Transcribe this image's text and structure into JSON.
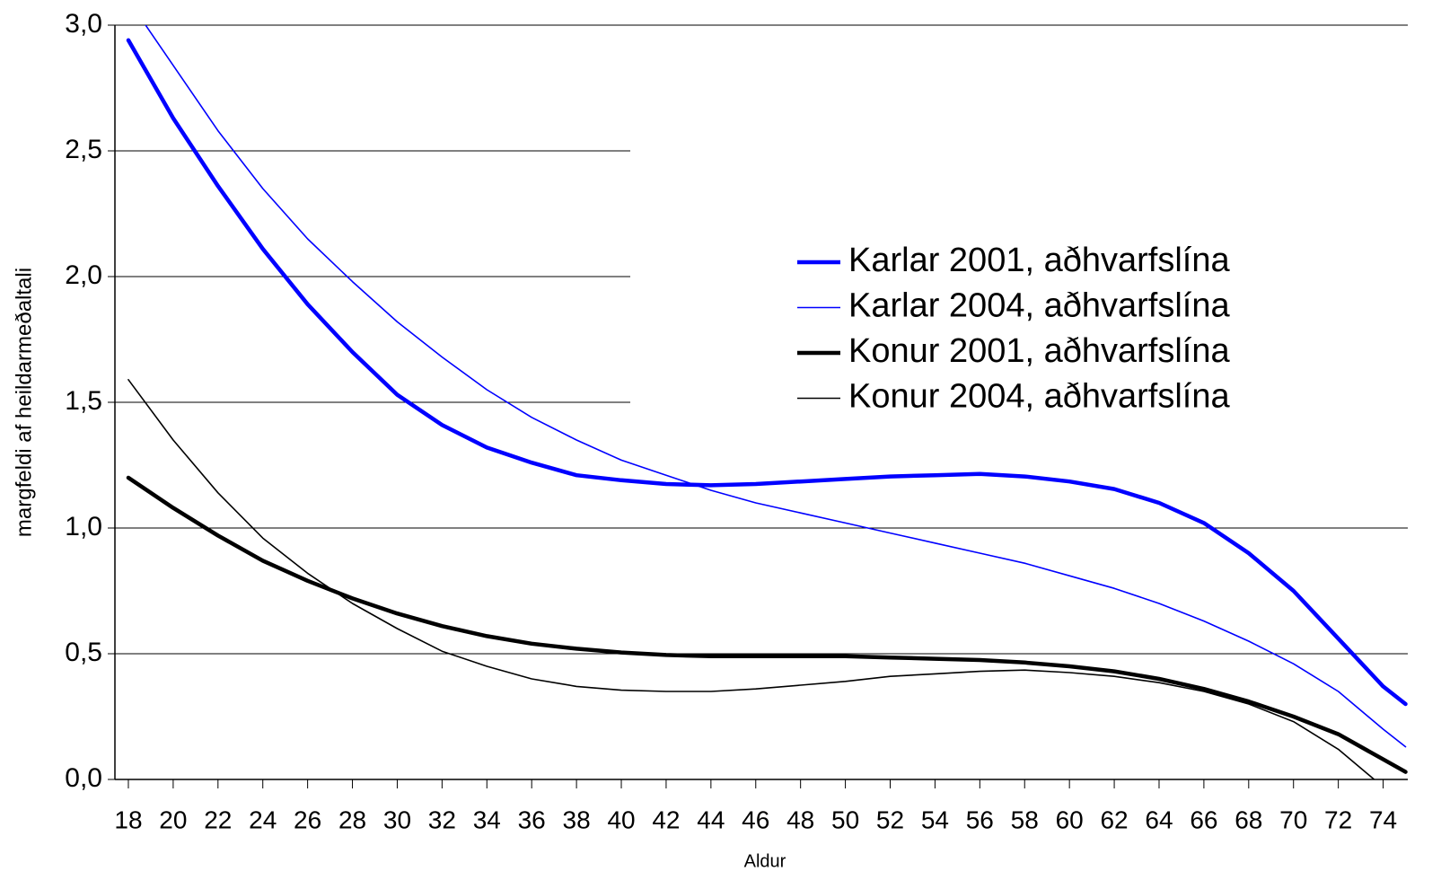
{
  "chart_data": {
    "type": "line",
    "x_label": "Aldur",
    "y_label": "margfeldi af heildarmeðaltali",
    "x": [
      18,
      20,
      22,
      24,
      26,
      28,
      30,
      32,
      34,
      36,
      38,
      40,
      42,
      44,
      46,
      48,
      50,
      52,
      54,
      56,
      58,
      60,
      62,
      64,
      66,
      68,
      70,
      72,
      74,
      75
    ],
    "series": [
      {
        "name": "Karlar 2001, aðhvarfslína",
        "color": "#0000ff",
        "width": 4.5,
        "values": [
          2.94,
          2.63,
          2.36,
          2.11,
          1.89,
          1.7,
          1.53,
          1.41,
          1.32,
          1.26,
          1.21,
          1.19,
          1.175,
          1.17,
          1.175,
          1.185,
          1.195,
          1.205,
          1.21,
          1.215,
          1.205,
          1.185,
          1.155,
          1.1,
          1.02,
          0.9,
          0.75,
          0.56,
          0.37,
          0.3
        ]
      },
      {
        "name": "Karlar 2004, aðhvarfslína",
        "color": "#0000ff",
        "width": 1.6,
        "values": [
          3.1,
          2.84,
          2.58,
          2.35,
          2.15,
          1.98,
          1.82,
          1.68,
          1.55,
          1.44,
          1.35,
          1.27,
          1.21,
          1.15,
          1.1,
          1.06,
          1.02,
          0.98,
          0.94,
          0.9,
          0.86,
          0.81,
          0.76,
          0.7,
          0.63,
          0.55,
          0.46,
          0.35,
          0.2,
          0.13
        ]
      },
      {
        "name": "Konur 2001, aðhvarfslína",
        "color": "#000000",
        "width": 4.5,
        "values": [
          1.2,
          1.08,
          0.97,
          0.87,
          0.79,
          0.72,
          0.66,
          0.61,
          0.57,
          0.54,
          0.52,
          0.505,
          0.495,
          0.49,
          0.49,
          0.49,
          0.49,
          0.485,
          0.48,
          0.475,
          0.465,
          0.45,
          0.43,
          0.4,
          0.36,
          0.31,
          0.25,
          0.18,
          0.08,
          0.03
        ]
      },
      {
        "name": "Konur 2004, aðhvarfslína",
        "color": "#000000",
        "width": 1.6,
        "values": [
          1.59,
          1.35,
          1.14,
          0.96,
          0.82,
          0.7,
          0.6,
          0.51,
          0.45,
          0.4,
          0.37,
          0.355,
          0.35,
          0.35,
          0.36,
          0.375,
          0.39,
          0.41,
          0.42,
          0.43,
          0.435,
          0.425,
          0.41,
          0.385,
          0.35,
          0.3,
          0.23,
          0.12,
          -0.03,
          null
        ]
      }
    ],
    "xlim": [
      17.4,
      75.1
    ],
    "xticks": [
      18,
      20,
      22,
      24,
      26,
      28,
      30,
      32,
      34,
      36,
      38,
      40,
      42,
      44,
      46,
      48,
      50,
      52,
      54,
      56,
      58,
      60,
      62,
      64,
      66,
      68,
      70,
      72,
      74
    ],
    "ylim": [
      0,
      3
    ],
    "yticks": [
      {
        "value": 0,
        "label": "0,0"
      },
      {
        "value": 0.5,
        "label": "0,5"
      },
      {
        "value": 1,
        "label": "1,0"
      },
      {
        "value": 1.5,
        "label": "1,5"
      },
      {
        "value": 2,
        "label": "2,0"
      },
      {
        "value": 2.5,
        "label": "2,5"
      },
      {
        "value": 3,
        "label": "3,0"
      }
    ],
    "grid": true,
    "legend": "right"
  }
}
